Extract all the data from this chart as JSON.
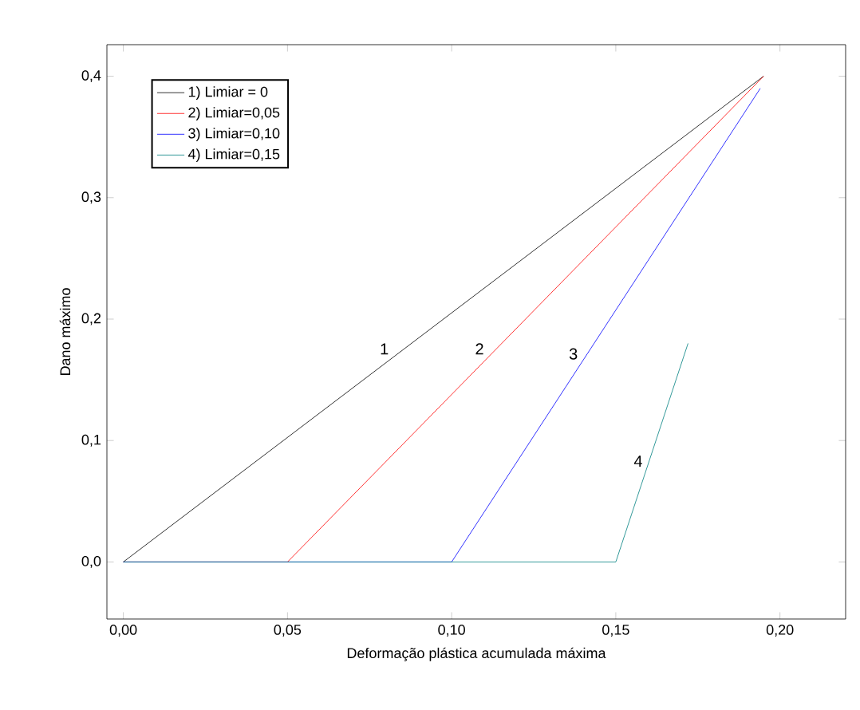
{
  "chart_data": {
    "type": "line",
    "xlabel": "Deformação plástica acumulada máxima",
    "ylabel": "Dano máximo",
    "legend": "top left",
    "grid": false,
    "marker": "none",
    "line_style": "solid",
    "xlim": [
      -0.005,
      0.22
    ],
    "ylim": [
      -0.047,
      0.426
    ],
    "xticks": [
      {
        "value": 0,
        "label": "0,00"
      },
      {
        "value": 0.05,
        "label": "0,05"
      },
      {
        "value": 0.1,
        "label": "0,10"
      },
      {
        "value": 0.15,
        "label": "0,15"
      },
      {
        "value": 0.2,
        "label": "0,20"
      }
    ],
    "yticks": [
      {
        "value": 0,
        "label": "0,0"
      },
      {
        "value": 0.1,
        "label": "0,1"
      },
      {
        "value": 0.2,
        "label": "0,2"
      },
      {
        "value": 0.3,
        "label": "0,3"
      },
      {
        "value": 0.4,
        "label": "0,4"
      }
    ],
    "series": [
      {
        "name": "1) Limiar = 0",
        "color": "#000000",
        "x": [
          0,
          0.195
        ],
        "values": [
          0,
          0.4
        ]
      },
      {
        "name": "2) Limiar=0,05",
        "color": "#ff0000",
        "x": [
          0,
          0.05,
          0.195
        ],
        "values": [
          0,
          0,
          0.4
        ]
      },
      {
        "name": "3) Limiar=0,10",
        "color": "#0000ff",
        "x": [
          0,
          0.1,
          0.194
        ],
        "values": [
          0,
          0,
          0.39
        ]
      },
      {
        "name": "4) Limiar=0,15",
        "color": "#008080",
        "x": [
          0,
          0.15,
          0.172
        ],
        "values": [
          0,
          0,
          0.18
        ]
      }
    ],
    "annotations": [
      "1",
      "2",
      "3",
      "4"
    ]
  }
}
